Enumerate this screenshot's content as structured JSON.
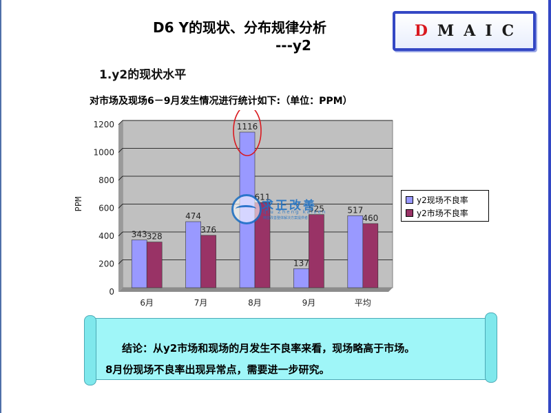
{
  "slide": {
    "title": "D6 Y的现状、分布规律分析",
    "title_sub": "---y2",
    "heading": "1.y2的现状水平",
    "caption": "对市场及现场6－9月发生情况进行统计如下:（单位：PPM）",
    "dmaic": [
      "D",
      "M",
      "A",
      "I",
      "C"
    ],
    "conclusion_line1": "结论：从y2市场和现场的月发生不良率来看，现场略高于市场。",
    "conclusion_line2": "8月份现场不良率出现异常点，需要进一步研究。"
  },
  "watermark": {
    "title": "求正改善",
    "pinyin": "qiu Zheng kaizen",
    "note": "精益改善整体解决方案提供者"
  },
  "colors": {
    "series1": "#9999ff",
    "series2": "#993366",
    "plot_bg": "#c0c0c0",
    "accent": "#3347c4",
    "highlight": "#d9181e",
    "scroll": "#9ff6f8"
  },
  "chart_data": {
    "type": "bar",
    "categories": [
      "6月",
      "7月",
      "8月",
      "9月",
      "平均"
    ],
    "series": [
      {
        "name": "y2现场不良率",
        "values": [
          343,
          474,
          1116,
          137,
          517
        ]
      },
      {
        "name": "y2市场不良率",
        "values": [
          328,
          376,
          611,
          525,
          460
        ]
      }
    ],
    "ylabel": "PPM",
    "ylim": [
      0,
      1200
    ],
    "yticks": [
      0,
      200,
      400,
      600,
      800,
      1000,
      1200
    ],
    "grid": true,
    "legend": "right",
    "highlight_category": "8月"
  }
}
